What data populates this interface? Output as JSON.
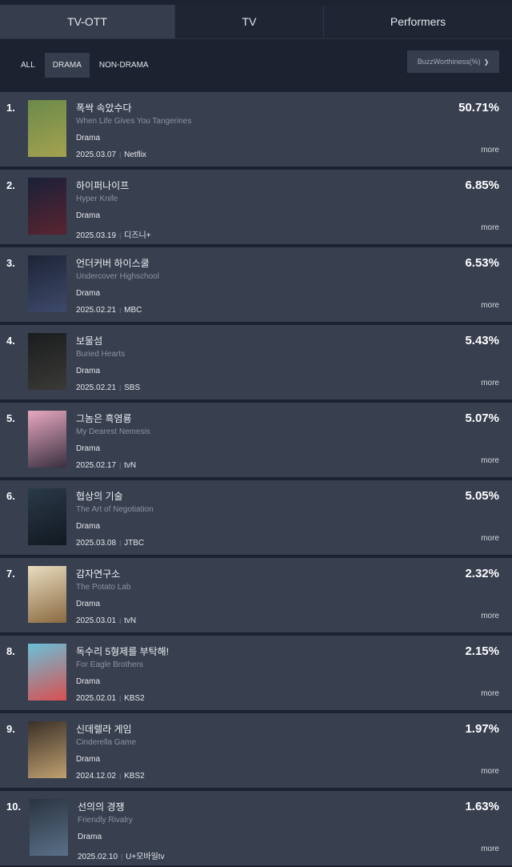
{
  "tabs": [
    {
      "label": "TV-OTT",
      "active": true
    },
    {
      "label": "TV",
      "active": false
    },
    {
      "label": "Performers",
      "active": false
    }
  ],
  "filters": [
    {
      "label": "ALL",
      "active": false
    },
    {
      "label": "DRAMA",
      "active": true
    },
    {
      "label": "NON-DRAMA",
      "active": false
    }
  ],
  "sort": {
    "label": "BuzzWorthiness(%)",
    "icon": "chevron-down-icon"
  },
  "more_label": "more",
  "items": [
    {
      "rank": "1.",
      "title_kr": "폭싹 속았수다",
      "title_en": "When Life Gives You Tangerines",
      "genre": "Drama",
      "date": "2025.03.07",
      "channel": "Netflix",
      "value": "50.71%",
      "poster": [
        "#6b8a4a",
        "#a4a24f"
      ]
    },
    {
      "rank": "2.",
      "title_kr": "하이퍼나이프",
      "title_en": "Hyper Knife",
      "genre": "Drama",
      "date": "2025.03.19",
      "channel": "디즈니+",
      "value": "6.85%",
      "poster": [
        "#1a2038",
        "#5a2430"
      ]
    },
    {
      "rank": "3.",
      "title_kr": "언더커버 하이스쿨",
      "title_en": "Undercover Highschool",
      "genre": "Drama",
      "date": "2025.02.21",
      "channel": "MBC",
      "value": "6.53%",
      "poster": [
        "#1c2436",
        "#3d4a6a"
      ]
    },
    {
      "rank": "4.",
      "title_kr": "보물섬",
      "title_en": "Buried Hearts",
      "genre": "Drama",
      "date": "2025.02.21",
      "channel": "SBS",
      "value": "5.43%",
      "poster": [
        "#1a1c1e",
        "#3a3a36"
      ]
    },
    {
      "rank": "5.",
      "title_kr": "그놈은 흑염룡",
      "title_en": "My Dearest Nemesis",
      "genre": "Drama",
      "date": "2025.02.17",
      "channel": "tvN",
      "value": "5.07%",
      "poster": [
        "#e8a8c0",
        "#3a3040"
      ]
    },
    {
      "rank": "6.",
      "title_kr": "협상의 기술",
      "title_en": "The Art of Negotiation",
      "genre": "Drama",
      "date": "2025.03.08",
      "channel": "JTBC",
      "value": "5.05%",
      "poster": [
        "#2a3a48",
        "#111820"
      ]
    },
    {
      "rank": "7.",
      "title_kr": "감자연구소",
      "title_en": "The Potato Lab",
      "genre": "Drama",
      "date": "2025.03.01",
      "channel": "tvN",
      "value": "2.32%",
      "poster": [
        "#e8dcc0",
        "#8a6a40"
      ]
    },
    {
      "rank": "8.",
      "title_kr": "독수리 5형제를 부탁해!",
      "title_en": "For Eagle Brothers",
      "genre": "Drama",
      "date": "2025.02.01",
      "channel": "KBS2",
      "value": "2.15%",
      "poster": [
        "#6ac0d8",
        "#d85050"
      ]
    },
    {
      "rank": "9.",
      "title_kr": "신데렐라 게임",
      "title_en": "Cinderella Game",
      "genre": "Drama",
      "date": "2024.12.02",
      "channel": "KBS2",
      "value": "1.97%",
      "poster": [
        "#3a3028",
        "#c0a070"
      ]
    },
    {
      "rank": "10.",
      "title_kr": "선의의 경쟁",
      "title_en": "Friendly Rivalry",
      "genre": "Drama",
      "date": "2025.02.10",
      "channel": "U+모바일tv",
      "value": "1.63%",
      "poster": [
        "#2a3440",
        "#5a7088"
      ]
    }
  ]
}
